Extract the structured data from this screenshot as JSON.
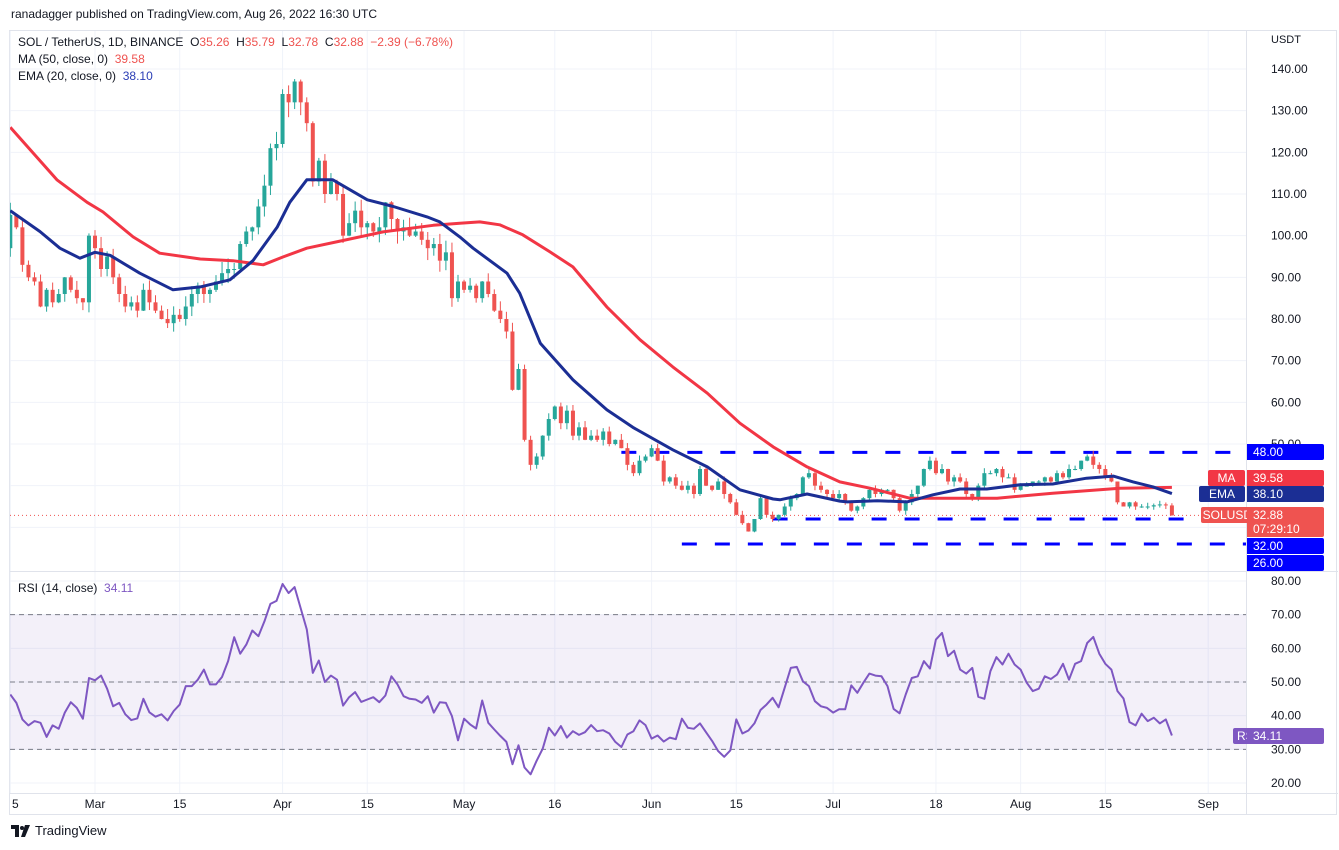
{
  "header": {
    "publisher_line": "ranadagger published on TradingView.com, Aug 26, 2022 16:30 UTC"
  },
  "legend": {
    "symbol": "SOL / TetherUS, 1D, BINANCE",
    "o_label": "O",
    "open": "35.26",
    "h_label": "H",
    "high": "35.79",
    "l_label": "L",
    "low": "32.78",
    "c_label": "C",
    "close": "32.88",
    "change": "−2.39 (−6.78%)",
    "ma_label": "MA (50, close, 0)",
    "ma_value": "39.58",
    "ema_label": "EMA (20, close, 0)",
    "ema_value": "38.10",
    "rsi_label": "RSI (14, close)",
    "rsi_value": "34.11"
  },
  "axis": {
    "currency": "USDT"
  },
  "badges": {
    "level_48": "48.00",
    "ma_tag": "MA",
    "ma_value": "39.58",
    "ema_tag": "EMA",
    "ema_value": "38.10",
    "symbol_tag": "SOLUSDT",
    "last_price": "32.88",
    "countdown": "07:29:10",
    "level_32": "32.00",
    "level_26": "26.00",
    "rsi_tag": "RSI",
    "rsi_value": "34.11"
  },
  "footer": {
    "brand": "TradingView"
  },
  "colors": {
    "up": "#26a69a",
    "down": "#ef5350",
    "ma": "#f23645",
    "ema": "#1b2e94",
    "rsi": "#7e57c2",
    "level": "#0000ff",
    "last_price": "#ef5350"
  },
  "chart_data": {
    "type": "candlestick",
    "x_unit": "day index (0 = 2022-02-14)",
    "price_ticks": [
      140,
      130,
      120,
      110,
      100,
      90,
      80,
      70,
      60,
      50
    ],
    "price_range": [
      20,
      143
    ],
    "rsi_ticks": [
      80,
      70,
      60,
      50,
      40,
      30,
      20
    ],
    "rsi_bands": [
      70,
      50,
      30
    ],
    "rsi_range": [
      17,
      83
    ],
    "time_labels": [
      {
        "label": "5",
        "day": 1
      },
      {
        "label": "Mar",
        "day": 15
      },
      {
        "label": "15",
        "day": 29
      },
      {
        "label": "Apr",
        "day": 46
      },
      {
        "label": "15",
        "day": 60
      },
      {
        "label": "May",
        "day": 76
      },
      {
        "label": "16",
        "day": 91
      },
      {
        "label": "Jun",
        "day": 107
      },
      {
        "label": "15",
        "day": 121
      },
      {
        "label": "Jul",
        "day": 137
      },
      {
        "label": "18",
        "day": 154
      },
      {
        "label": "Aug",
        "day": 168
      },
      {
        "label": "15",
        "day": 182
      },
      {
        "label": "Sep",
        "day": 199
      }
    ],
    "closes": [
      97,
      105,
      102,
      93,
      90,
      89,
      83,
      87,
      84,
      86,
      90,
      87,
      85,
      84,
      100,
      97,
      92,
      95,
      90,
      86,
      83,
      84,
      82,
      87,
      84,
      82,
      80,
      79,
      81,
      80,
      83,
      86,
      88,
      86,
      87,
      89,
      91,
      92,
      92,
      98,
      101,
      102,
      107,
      112,
      121,
      122,
      134,
      132,
      137,
      132,
      127,
      113,
      118,
      110,
      113,
      110,
      100,
      103,
      106,
      102,
      103,
      101,
      102,
      108,
      104,
      101,
      102,
      100,
      101,
      99,
      97,
      98,
      94,
      96,
      85,
      89,
      87,
      88,
      85,
      89,
      86,
      82,
      80,
      77,
      63,
      68,
      51,
      45,
      47,
      52,
      56,
      59,
      55,
      58,
      52,
      54,
      51,
      52,
      51,
      53,
      50,
      51,
      49,
      45,
      43,
      46,
      47,
      49,
      46,
      41,
      42,
      40,
      39,
      40,
      38,
      44,
      40,
      39,
      41,
      38,
      36,
      33,
      31,
      29,
      32,
      37,
      33,
      32,
      33,
      35,
      37,
      38,
      42,
      43,
      40,
      39,
      38,
      37,
      38,
      36,
      34,
      35,
      37,
      39,
      38,
      39,
      39,
      37,
      34,
      36,
      38,
      40,
      44,
      46,
      43,
      44,
      41,
      42,
      41,
      38,
      37,
      40,
      43,
      43,
      44,
      42,
      42,
      39,
      40,
      40,
      41,
      41,
      42,
      41,
      43,
      42,
      44,
      44,
      46,
      47,
      45,
      44,
      42,
      41,
      36,
      35,
      36,
      35,
      35,
      35,
      35.3,
      35.5,
      35.26,
      32.88
    ],
    "last_candle": {
      "open": 35.26,
      "high": 35.79,
      "low": 32.78,
      "close": 32.88
    },
    "ma50": [
      [
        1,
        126
      ],
      [
        8.7,
        113.4
      ],
      [
        13.7,
        108
      ],
      [
        16.3,
        105.7
      ],
      [
        21.3,
        99.7
      ],
      [
        25.7,
        95.8
      ],
      [
        32.4,
        94.4
      ],
      [
        37.8,
        94
      ],
      [
        42.8,
        93
      ],
      [
        46.1,
        94.9
      ],
      [
        50,
        97
      ],
      [
        55.5,
        98.7
      ],
      [
        62.6,
        100.9
      ],
      [
        70.9,
        102.5
      ],
      [
        75.3,
        103
      ],
      [
        78.6,
        103.3
      ],
      [
        81.9,
        102.6
      ],
      [
        85.7,
        100.2
      ],
      [
        90.2,
        96.1
      ],
      [
        94,
        92.5
      ],
      [
        99.6,
        82.9
      ],
      [
        105.1,
        75
      ],
      [
        110.5,
        68.5
      ],
      [
        116.2,
        62.2
      ],
      [
        121.6,
        55
      ],
      [
        127.1,
        49.3
      ],
      [
        132.7,
        44.5
      ],
      [
        138.1,
        40.9
      ],
      [
        143.1,
        39.4
      ],
      [
        149.7,
        37
      ],
      [
        156.8,
        37
      ],
      [
        164.1,
        37
      ],
      [
        173.3,
        38.2
      ],
      [
        184.4,
        39.4
      ],
      [
        193,
        39.58
      ]
    ],
    "ema20": [
      [
        1,
        106
      ],
      [
        5.9,
        101
      ],
      [
        9.2,
        97
      ],
      [
        12.5,
        94.6
      ],
      [
        15,
        96
      ],
      [
        17.5,
        95.3
      ],
      [
        22.4,
        91
      ],
      [
        27.9,
        87
      ],
      [
        32.4,
        87.7
      ],
      [
        37.3,
        89.4
      ],
      [
        41.1,
        94
      ],
      [
        45.1,
        102
      ],
      [
        47.2,
        108
      ],
      [
        50,
        113.4
      ],
      [
        54.3,
        113.4
      ],
      [
        60,
        108.6
      ],
      [
        64.3,
        107
      ],
      [
        69.9,
        104.5
      ],
      [
        72,
        103.3
      ],
      [
        75.3,
        99.7
      ],
      [
        77.5,
        97
      ],
      [
        83.1,
        91
      ],
      [
        85.2,
        86.2
      ],
      [
        88.6,
        74.2
      ],
      [
        94,
        65.4
      ],
      [
        99.6,
        58.2
      ],
      [
        103.9,
        54
      ],
      [
        110.5,
        48.6
      ],
      [
        116.2,
        44.5
      ],
      [
        121.6,
        39
      ],
      [
        127.1,
        36.8
      ],
      [
        128.2,
        36.6
      ],
      [
        132.7,
        38
      ],
      [
        138.1,
        36.3
      ],
      [
        139.3,
        36.1
      ],
      [
        144.3,
        36.4
      ],
      [
        149.2,
        36.1
      ],
      [
        153.5,
        37.8
      ],
      [
        158,
        39.2
      ],
      [
        162.4,
        39.2
      ],
      [
        167.9,
        40.2
      ],
      [
        173.3,
        40.4
      ],
      [
        178.9,
        41.8
      ],
      [
        183.3,
        42.3
      ],
      [
        186.6,
        40.9
      ],
      [
        189.9,
        39.7
      ],
      [
        193,
        38.1
      ]
    ],
    "rsi": [
      [
        1,
        46.3
      ],
      [
        2,
        43.8
      ],
      [
        3,
        38.9
      ],
      [
        4,
        37.1
      ],
      [
        5,
        38.4
      ],
      [
        6,
        37.9
      ],
      [
        7,
        33.7
      ],
      [
        8,
        37.1
      ],
      [
        9,
        36.1
      ],
      [
        10,
        40.9
      ],
      [
        11,
        44
      ],
      [
        12,
        42.3
      ],
      [
        13,
        39.1
      ],
      [
        14,
        51.2
      ],
      [
        15,
        50.5
      ],
      [
        16,
        51.9
      ],
      [
        17,
        48
      ],
      [
        18,
        42.8
      ],
      [
        19,
        43.8
      ],
      [
        20,
        40.4
      ],
      [
        21,
        38.7
      ],
      [
        22,
        39.2
      ],
      [
        23,
        45
      ],
      [
        24,
        41
      ],
      [
        25,
        39.7
      ],
      [
        26,
        40.4
      ],
      [
        27,
        38.6
      ],
      [
        28,
        41.4
      ],
      [
        29,
        43.3
      ],
      [
        30,
        48.8
      ],
      [
        31,
        48.8
      ],
      [
        32,
        50.7
      ],
      [
        33,
        53.7
      ],
      [
        34,
        49.3
      ],
      [
        35,
        49.3
      ],
      [
        36,
        51.5
      ],
      [
        37,
        56.2
      ],
      [
        38,
        63.3
      ],
      [
        39,
        58.4
      ],
      [
        40,
        61.1
      ],
      [
        41,
        65.3
      ],
      [
        42,
        63.6
      ],
      [
        43,
        68
      ],
      [
        44,
        73.2
      ],
      [
        45,
        74.1
      ],
      [
        46,
        79.1
      ],
      [
        47,
        76.4
      ],
      [
        48,
        78.2
      ],
      [
        50,
        65.6
      ],
      [
        51,
        52.7
      ],
      [
        52,
        56.4
      ],
      [
        53,
        50
      ],
      [
        54,
        51.9
      ],
      [
        55,
        50.7
      ],
      [
        56,
        43
      ],
      [
        57,
        45.5
      ],
      [
        58,
        47
      ],
      [
        59,
        44.1
      ],
      [
        60,
        44.8
      ],
      [
        61,
        45.5
      ],
      [
        62,
        44
      ],
      [
        63,
        46
      ],
      [
        64,
        51.7
      ],
      [
        65,
        49.3
      ],
      [
        66,
        45.8
      ],
      [
        67,
        45
      ],
      [
        68,
        44.8
      ],
      [
        69,
        43.8
      ],
      [
        70,
        45.8
      ],
      [
        71,
        40.9
      ],
      [
        72,
        44
      ],
      [
        73,
        43.8
      ],
      [
        74,
        39.9
      ],
      [
        75,
        32.7
      ],
      [
        76,
        39.1
      ],
      [
        77,
        37.4
      ],
      [
        78,
        36.2
      ],
      [
        79,
        44.5
      ],
      [
        80,
        37.9
      ],
      [
        81,
        35.9
      ],
      [
        82,
        34
      ],
      [
        83,
        32.2
      ],
      [
        84,
        25.6
      ],
      [
        85,
        31.2
      ],
      [
        86,
        24.6
      ],
      [
        87,
        22.6
      ],
      [
        88,
        26.6
      ],
      [
        89,
        30.2
      ],
      [
        90,
        36.4
      ],
      [
        91,
        34.1
      ],
      [
        92,
        36.9
      ],
      [
        93,
        33.5
      ],
      [
        94,
        35.4
      ],
      [
        95,
        34.3
      ],
      [
        96,
        35.1
      ],
      [
        97,
        37.2
      ],
      [
        98,
        35.4
      ],
      [
        99,
        35.7
      ],
      [
        100,
        34.7
      ],
      [
        101,
        32.2
      ],
      [
        102,
        30.7
      ],
      [
        103,
        34.4
      ],
      [
        104,
        35.4
      ],
      [
        105,
        38.6
      ],
      [
        106,
        37.2
      ],
      [
        107,
        33.2
      ],
      [
        108,
        34.1
      ],
      [
        109,
        32.3
      ],
      [
        110,
        33.5
      ],
      [
        111,
        33
      ],
      [
        112,
        39.1
      ],
      [
        113,
        36.4
      ],
      [
        114,
        36.1
      ],
      [
        115,
        37.7
      ],
      [
        116,
        35.1
      ],
      [
        117,
        32.5
      ],
      [
        118,
        29.5
      ],
      [
        119,
        27.8
      ],
      [
        120,
        29.7
      ],
      [
        121,
        38.9
      ],
      [
        122,
        34.7
      ],
      [
        123,
        35.6
      ],
      [
        124,
        37.7
      ],
      [
        125,
        41.7
      ],
      [
        126,
        43.3
      ],
      [
        127,
        45.3
      ],
      [
        128,
        42.5
      ],
      [
        129,
        48.3
      ],
      [
        130,
        54.2
      ],
      [
        131,
        54.5
      ],
      [
        132,
        50.2
      ],
      [
        133,
        48.8
      ],
      [
        134,
        44.3
      ],
      [
        135,
        42.8
      ],
      [
        136,
        42.3
      ],
      [
        137,
        40.9
      ],
      [
        138,
        41.9
      ],
      [
        139,
        41.9
      ],
      [
        140,
        49
      ],
      [
        141,
        46.8
      ],
      [
        142,
        49.8
      ],
      [
        143,
        52.5
      ],
      [
        144,
        51.9
      ],
      [
        145,
        51.7
      ],
      [
        146,
        48.8
      ],
      [
        147,
        42
      ],
      [
        148,
        40.7
      ],
      [
        149,
        46.3
      ],
      [
        150,
        51.2
      ],
      [
        151,
        51.7
      ],
      [
        152,
        56.2
      ],
      [
        153,
        54
      ],
      [
        154,
        62.6
      ],
      [
        155,
        64.6
      ],
      [
        156,
        57.7
      ],
      [
        157,
        59.3
      ],
      [
        158,
        53.7
      ],
      [
        159,
        52.5
      ],
      [
        160,
        54.2
      ],
      [
        161,
        45.6
      ],
      [
        162,
        45
      ],
      [
        163,
        53.2
      ],
      [
        164,
        57.4
      ],
      [
        165,
        55.2
      ],
      [
        166,
        58.4
      ],
      [
        167,
        55.2
      ],
      [
        168,
        53.7
      ],
      [
        169,
        49.8
      ],
      [
        170,
        47.3
      ],
      [
        171,
        48
      ],
      [
        172,
        51.7
      ],
      [
        173,
        50.9
      ],
      [
        174,
        52.2
      ],
      [
        175,
        55.4
      ],
      [
        176,
        50.7
      ],
      [
        177,
        55.4
      ],
      [
        178,
        56.2
      ],
      [
        179,
        61.6
      ],
      [
        180,
        63.4
      ],
      [
        181,
        58.4
      ],
      [
        182,
        55.4
      ],
      [
        183,
        53.7
      ],
      [
        184,
        47.3
      ],
      [
        185,
        45.1
      ],
      [
        186,
        38.1
      ],
      [
        187,
        37.1
      ],
      [
        188,
        40.6
      ],
      [
        189,
        38.4
      ],
      [
        190,
        39.4
      ],
      [
        191,
        37.7
      ],
      [
        192,
        38.9
      ],
      [
        193,
        34.11
      ]
    ],
    "levels": [
      {
        "value": 48,
        "from_day": 102
      },
      {
        "value": 32,
        "from_day": 127
      },
      {
        "value": 26,
        "from_day": 112
      }
    ],
    "last_price_line": 32.88
  }
}
